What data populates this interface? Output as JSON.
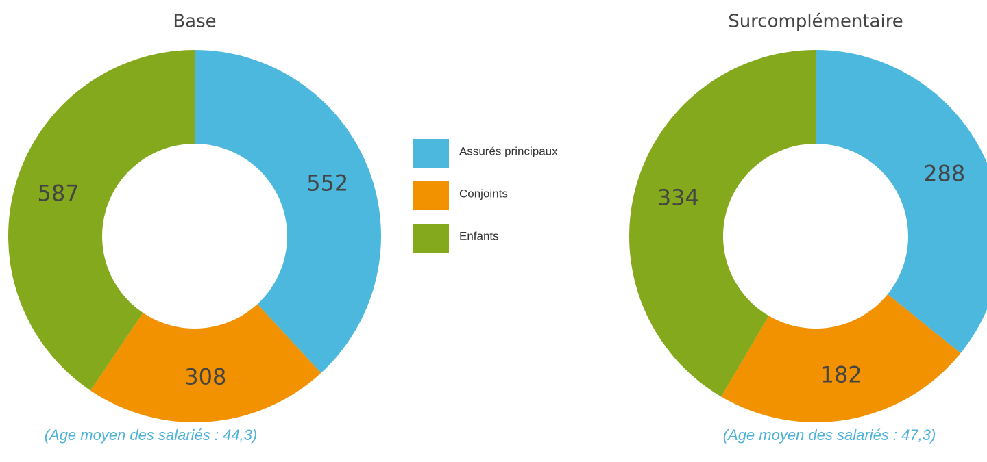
{
  "chart_data": [
    {
      "type": "donut",
      "title": "Base",
      "categories": [
        "Assurés principaux",
        "Conjoints",
        "Enfants"
      ],
      "values": [
        552,
        308,
        587
      ],
      "colors": [
        "#4db8de",
        "#f29200",
        "#84a91c"
      ],
      "note": "(Age moyen des salariés : 44,3)"
    },
    {
      "type": "donut",
      "title": "Surcomplémentaire",
      "categories": [
        "Assurés principaux",
        "Conjoints",
        "Enfants"
      ],
      "values": [
        288,
        182,
        334
      ],
      "colors": [
        "#4db8de",
        "#f29200",
        "#84a91c"
      ],
      "note": "(Age moyen des salariés : 47,3)"
    }
  ]
}
